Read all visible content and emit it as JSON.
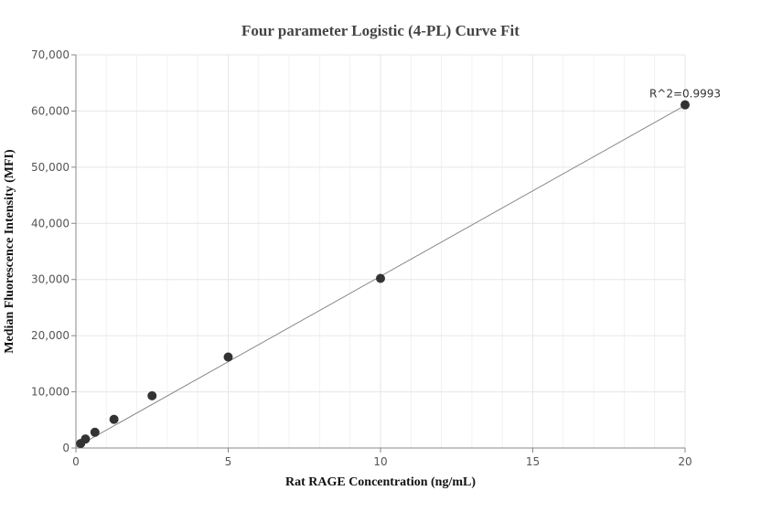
{
  "chart_data": {
    "type": "scatter",
    "title": "Four parameter Logistic (4-PL) Curve Fit",
    "xlabel": "Rat RAGE Concentration (ng/mL)",
    "ylabel": "Median Fluorescence Intensity (MFI)",
    "xlim": [
      0,
      20
    ],
    "ylim": [
      0,
      70000
    ],
    "xticks": [
      0,
      5,
      10,
      15,
      20
    ],
    "xtick_labels": [
      "0",
      "5",
      "10",
      "15",
      "20"
    ],
    "yticks": [
      0,
      10000,
      20000,
      30000,
      40000,
      50000,
      60000,
      70000
    ],
    "ytick_labels": [
      "0",
      "10,000",
      "20,000",
      "30,000",
      "40,000",
      "50,000",
      "60,000",
      "70,000"
    ],
    "grid": true,
    "series": [
      {
        "points": [
          {
            "x": 0.156,
            "y": 800
          },
          {
            "x": 0.313,
            "y": 1600
          },
          {
            "x": 0.625,
            "y": 2800
          },
          {
            "x": 1.25,
            "y": 5100
          },
          {
            "x": 2.5,
            "y": 9300
          },
          {
            "x": 5,
            "y": 16200
          },
          {
            "x": 10,
            "y": 30200
          },
          {
            "x": 20,
            "y": 61100
          }
        ]
      }
    ],
    "fit_line": {
      "x": [
        0,
        20
      ],
      "y": [
        150,
        61000
      ]
    },
    "annotation": {
      "text": "R^2=0.9993",
      "x": 20,
      "y": 61100
    },
    "colors": {
      "points": "#333333",
      "line": "#888888",
      "grid": "#e6e6e6",
      "axis": "#888888"
    }
  }
}
